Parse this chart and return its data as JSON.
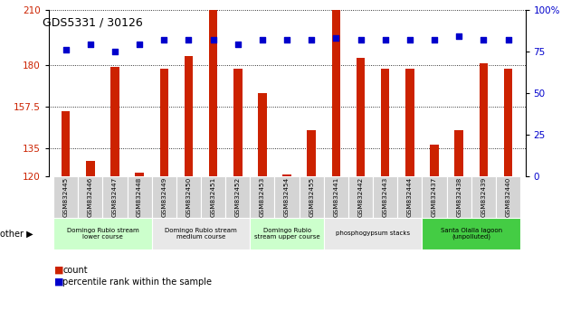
{
  "title": "GDS5331 / 30126",
  "samples": [
    "GSM832445",
    "GSM832446",
    "GSM832447",
    "GSM832448",
    "GSM832449",
    "GSM832450",
    "GSM832451",
    "GSM832452",
    "GSM832453",
    "GSM832454",
    "GSM832455",
    "GSM832441",
    "GSM832442",
    "GSM832443",
    "GSM832444",
    "GSM832437",
    "GSM832438",
    "GSM832439",
    "GSM832440"
  ],
  "counts": [
    155,
    128,
    179,
    122,
    178,
    185,
    210,
    178,
    165,
    121,
    145,
    210,
    184,
    178,
    178,
    137,
    145,
    181,
    178
  ],
  "percentiles": [
    76,
    79,
    75,
    79,
    82,
    82,
    82,
    79,
    82,
    82,
    82,
    83,
    82,
    82,
    82,
    82,
    84,
    82,
    82
  ],
  "groups": [
    {
      "label": "Domingo Rubio stream\nlower course",
      "start": 0,
      "end": 4,
      "color": "#ccffcc"
    },
    {
      "label": "Domingo Rubio stream\nmedium course",
      "start": 4,
      "end": 8,
      "color": "#e8e8e8"
    },
    {
      "label": "Domingo Rubio\nstream upper course",
      "start": 8,
      "end": 11,
      "color": "#ccffcc"
    },
    {
      "label": "phosphogypsum stacks",
      "start": 11,
      "end": 15,
      "color": "#e8e8e8"
    },
    {
      "label": "Santa Olalla lagoon\n(unpolluted)",
      "start": 15,
      "end": 19,
      "color": "#44cc44"
    }
  ],
  "bar_color": "#cc2200",
  "dot_color": "#0000cc",
  "left_yticks": [
    120,
    135,
    157.5,
    180,
    210
  ],
  "left_yticklabels": [
    "120",
    "135",
    "157.5",
    "180",
    "210"
  ],
  "right_yticks": [
    0,
    25,
    50,
    75,
    100
  ],
  "right_yticklabels": [
    "0",
    "25",
    "50",
    "75",
    "100%"
  ],
  "left_ylim": [
    120,
    210
  ],
  "right_ylim": [
    0,
    100
  ],
  "bar_color_hex": "#cc2200",
  "tick_label_color_left": "#cc2200",
  "tick_label_color_right": "#0000cc",
  "other_label": "other"
}
